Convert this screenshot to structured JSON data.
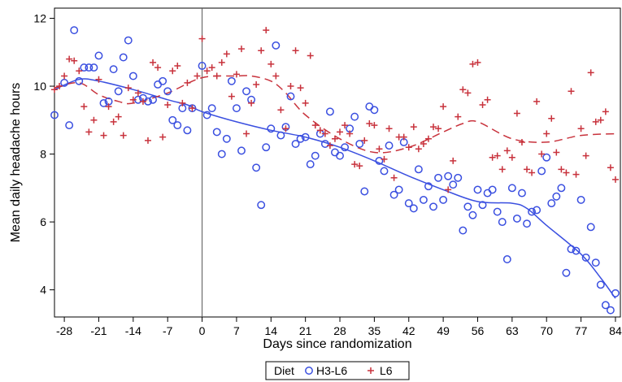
{
  "chart_data": {
    "type": "scatter",
    "title": "",
    "xlabel": "Days since randomization",
    "ylabel": "Mean daily headache hours",
    "xlim": [
      -30,
      85
    ],
    "ylim": [
      3.2,
      12.3
    ],
    "xticks": [
      -28,
      -21,
      -14,
      -7,
      0,
      7,
      14,
      21,
      28,
      35,
      42,
      49,
      56,
      63,
      70,
      77,
      84
    ],
    "yticks": [
      4,
      6,
      8,
      10,
      12
    ],
    "grid": false,
    "reference_line_x": 0,
    "legend": {
      "title": "Diet",
      "placement": "bottom-center",
      "entries": [
        "H3-L6",
        "L6"
      ]
    },
    "colors": {
      "H3-L6": "#3a4fe0",
      "L6": "#c8323c"
    },
    "series": [
      {
        "name": "H3-L6",
        "marker": "circle",
        "points": [
          [
            -30,
            9.15
          ],
          [
            -28,
            10.1
          ],
          [
            -27,
            8.85
          ],
          [
            -26,
            11.65
          ],
          [
            -25,
            10.15
          ],
          [
            -24,
            10.55
          ],
          [
            -23,
            10.55
          ],
          [
            -22,
            10.55
          ],
          [
            -21,
            10.9
          ],
          [
            -20,
            9.5
          ],
          [
            -19,
            9.55
          ],
          [
            -18,
            10.5
          ],
          [
            -17,
            9.85
          ],
          [
            -16,
            10.85
          ],
          [
            -15,
            11.35
          ],
          [
            -14,
            10.3
          ],
          [
            -13,
            9.6
          ],
          [
            -12,
            9.65
          ],
          [
            -11,
            9.55
          ],
          [
            -10,
            9.6
          ],
          [
            -9,
            10.05
          ],
          [
            -8,
            10.15
          ],
          [
            -7,
            9.85
          ],
          [
            -6,
            9.0
          ],
          [
            -5,
            8.85
          ],
          [
            -4,
            9.35
          ],
          [
            -3,
            8.7
          ],
          [
            -2,
            9.35
          ],
          [
            0,
            10.6
          ],
          [
            1,
            9.15
          ],
          [
            2,
            9.35
          ],
          [
            3,
            8.65
          ],
          [
            4,
            8.0
          ],
          [
            5,
            8.45
          ],
          [
            6,
            10.15
          ],
          [
            7,
            9.35
          ],
          [
            8,
            8.1
          ],
          [
            9,
            9.85
          ],
          [
            10,
            9.6
          ],
          [
            11,
            7.6
          ],
          [
            12,
            6.5
          ],
          [
            13,
            8.2
          ],
          [
            14,
            8.75
          ],
          [
            15,
            11.2
          ],
          [
            16,
            8.55
          ],
          [
            17,
            8.8
          ],
          [
            18,
            9.7
          ],
          [
            19,
            8.3
          ],
          [
            20,
            8.45
          ],
          [
            21,
            8.5
          ],
          [
            22,
            7.7
          ],
          [
            23,
            7.95
          ],
          [
            24,
            8.6
          ],
          [
            25,
            8.3
          ],
          [
            26,
            9.25
          ],
          [
            27,
            8.05
          ],
          [
            28,
            7.95
          ],
          [
            29,
            8.2
          ],
          [
            30,
            8.75
          ],
          [
            31,
            9.1
          ],
          [
            32,
            8.3
          ],
          [
            33,
            6.9
          ],
          [
            34,
            9.4
          ],
          [
            35,
            9.3
          ],
          [
            36,
            7.8
          ],
          [
            37,
            7.5
          ],
          [
            38,
            8.25
          ],
          [
            39,
            6.8
          ],
          [
            40,
            6.95
          ],
          [
            41,
            8.35
          ],
          [
            42,
            6.55
          ],
          [
            43,
            6.4
          ],
          [
            44,
            7.55
          ],
          [
            45,
            6.65
          ],
          [
            46,
            7.05
          ],
          [
            47,
            6.45
          ],
          [
            48,
            7.3
          ],
          [
            49,
            6.65
          ],
          [
            50,
            7.35
          ],
          [
            51,
            7.1
          ],
          [
            52,
            7.3
          ],
          [
            53,
            5.75
          ],
          [
            54,
            6.45
          ],
          [
            55,
            6.2
          ],
          [
            56,
            6.95
          ],
          [
            57,
            6.5
          ],
          [
            58,
            6.85
          ],
          [
            59,
            6.95
          ],
          [
            60,
            6.3
          ],
          [
            61,
            6.0
          ],
          [
            62,
            4.9
          ],
          [
            63,
            7.0
          ],
          [
            64,
            6.1
          ],
          [
            65,
            6.85
          ],
          [
            66,
            5.95
          ],
          [
            67,
            6.3
          ],
          [
            68,
            6.35
          ],
          [
            69,
            7.5
          ],
          [
            70,
            7.9
          ],
          [
            71,
            6.55
          ],
          [
            72,
            6.75
          ],
          [
            73,
            7.0
          ],
          [
            74,
            4.5
          ],
          [
            75,
            5.2
          ],
          [
            76,
            5.15
          ],
          [
            77,
            6.65
          ],
          [
            78,
            4.95
          ],
          [
            79,
            5.85
          ],
          [
            80,
            4.8
          ],
          [
            81,
            4.15
          ],
          [
            82,
            3.55
          ],
          [
            83,
            3.4
          ],
          [
            84,
            3.9
          ]
        ],
        "trend": [
          [
            -30,
            9.9
          ],
          [
            -25,
            10.2
          ],
          [
            -21,
            10.15
          ],
          [
            -14,
            9.9
          ],
          [
            -7,
            9.6
          ],
          [
            -3,
            9.45
          ],
          [
            0,
            9.25
          ],
          [
            7,
            8.95
          ],
          [
            14,
            8.7
          ],
          [
            21,
            8.5
          ],
          [
            28,
            8.2
          ],
          [
            35,
            7.8
          ],
          [
            42,
            7.35
          ],
          [
            49,
            6.95
          ],
          [
            56,
            6.6
          ],
          [
            63,
            6.55
          ],
          [
            66,
            6.4
          ],
          [
            70,
            5.9
          ],
          [
            77,
            5.05
          ],
          [
            81,
            4.35
          ],
          [
            84,
            3.75
          ]
        ]
      },
      {
        "name": "L6",
        "marker": "plus",
        "points": [
          [
            -30,
            9.9
          ],
          [
            -29,
            10.0
          ],
          [
            -28,
            10.3
          ],
          [
            -27,
            10.8
          ],
          [
            -26,
            10.75
          ],
          [
            -25,
            10.45
          ],
          [
            -24,
            9.4
          ],
          [
            -23,
            8.65
          ],
          [
            -22,
            9.0
          ],
          [
            -21,
            10.2
          ],
          [
            -20,
            8.55
          ],
          [
            -19,
            9.4
          ],
          [
            -18,
            8.95
          ],
          [
            -17,
            9.1
          ],
          [
            -16,
            8.55
          ],
          [
            -15,
            9.95
          ],
          [
            -14,
            9.6
          ],
          [
            -13,
            9.8
          ],
          [
            -12,
            9.55
          ],
          [
            -11,
            8.4
          ],
          [
            -10,
            10.7
          ],
          [
            -9,
            10.55
          ],
          [
            -8,
            8.5
          ],
          [
            -7,
            9.45
          ],
          [
            -6,
            10.45
          ],
          [
            -5,
            10.6
          ],
          [
            -4,
            9.5
          ],
          [
            -3,
            10.1
          ],
          [
            -2,
            9.35
          ],
          [
            -1,
            10.3
          ],
          [
            0,
            11.4
          ],
          [
            1,
            10.45
          ],
          [
            2,
            10.55
          ],
          [
            3,
            10.3
          ],
          [
            4,
            10.7
          ],
          [
            5,
            10.95
          ],
          [
            6,
            9.7
          ],
          [
            7,
            10.35
          ],
          [
            8,
            11.1
          ],
          [
            9,
            8.6
          ],
          [
            10,
            9.5
          ],
          [
            11,
            10.05
          ],
          [
            12,
            11.05
          ],
          [
            13,
            11.65
          ],
          [
            14,
            10.65
          ],
          [
            15,
            10.3
          ],
          [
            16,
            9.3
          ],
          [
            17,
            8.75
          ],
          [
            18,
            10.0
          ],
          [
            19,
            11.05
          ],
          [
            20,
            9.95
          ],
          [
            21,
            9.5
          ],
          [
            22,
            10.9
          ],
          [
            23,
            8.85
          ],
          [
            24,
            8.7
          ],
          [
            25,
            8.6
          ],
          [
            26,
            8.25
          ],
          [
            27,
            8.45
          ],
          [
            28,
            8.65
          ],
          [
            29,
            8.85
          ],
          [
            30,
            8.6
          ],
          [
            31,
            7.7
          ],
          [
            32,
            7.65
          ],
          [
            33,
            8.4
          ],
          [
            34,
            8.9
          ],
          [
            35,
            8.85
          ],
          [
            36,
            8.15
          ],
          [
            37,
            7.85
          ],
          [
            38,
            8.75
          ],
          [
            39,
            7.3
          ],
          [
            40,
            8.5
          ],
          [
            41,
            8.5
          ],
          [
            42,
            8.2
          ],
          [
            43,
            8.8
          ],
          [
            44,
            8.15
          ],
          [
            45,
            8.3
          ],
          [
            46,
            8.45
          ],
          [
            47,
            8.8
          ],
          [
            48,
            8.75
          ],
          [
            49,
            9.4
          ],
          [
            50,
            6.95
          ],
          [
            51,
            7.8
          ],
          [
            52,
            9.1
          ],
          [
            53,
            9.9
          ],
          [
            54,
            9.8
          ],
          [
            55,
            10.65
          ],
          [
            56,
            10.7
          ],
          [
            57,
            9.45
          ],
          [
            58,
            9.6
          ],
          [
            59,
            7.9
          ],
          [
            60,
            7.95
          ],
          [
            61,
            7.55
          ],
          [
            62,
            8.1
          ],
          [
            63,
            7.9
          ],
          [
            64,
            9.2
          ],
          [
            65,
            8.35
          ],
          [
            66,
            7.55
          ],
          [
            67,
            7.45
          ],
          [
            68,
            9.55
          ],
          [
            69,
            8.0
          ],
          [
            70,
            8.6
          ],
          [
            71,
            9.05
          ],
          [
            72,
            8.05
          ],
          [
            73,
            7.55
          ],
          [
            74,
            7.45
          ],
          [
            75,
            9.85
          ],
          [
            76,
            7.4
          ],
          [
            77,
            8.75
          ],
          [
            78,
            7.95
          ],
          [
            79,
            10.4
          ],
          [
            80,
            8.95
          ],
          [
            81,
            9.0
          ],
          [
            82,
            9.25
          ],
          [
            83,
            7.6
          ],
          [
            84,
            7.25
          ]
        ],
        "trend": [
          [
            -30,
            9.95
          ],
          [
            -25,
            10.1
          ],
          [
            -21,
            9.75
          ],
          [
            -17,
            9.55
          ],
          [
            -14,
            9.5
          ],
          [
            -7,
            9.8
          ],
          [
            0,
            10.25
          ],
          [
            7,
            10.3
          ],
          [
            10,
            10.3
          ],
          [
            14,
            10.15
          ],
          [
            17,
            9.8
          ],
          [
            21,
            9.15
          ],
          [
            28,
            8.45
          ],
          [
            35,
            8.05
          ],
          [
            42,
            8.2
          ],
          [
            49,
            8.65
          ],
          [
            53,
            8.9
          ],
          [
            56,
            8.95
          ],
          [
            63,
            8.45
          ],
          [
            70,
            8.35
          ],
          [
            77,
            8.55
          ],
          [
            84,
            8.6
          ]
        ]
      }
    ]
  }
}
